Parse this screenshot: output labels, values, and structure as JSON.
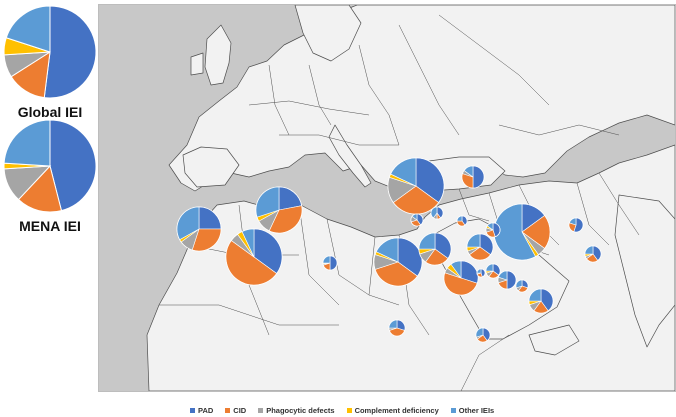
{
  "colors": {
    "PAD": "#4472c4",
    "CID": "#ed7d31",
    "Phagocytic defects": "#a5a5a5",
    "Complement deficiency": "#ffc000",
    "Other IEIs": "#5b9bd5",
    "land": "#f2f2f2",
    "sea": "#c8c8c8",
    "border": "#4d4d4d"
  },
  "legend": [
    {
      "label": "PAD",
      "color_key": "PAD"
    },
    {
      "label": "CID",
      "color_key": "CID"
    },
    {
      "label": "Phagocytic defects",
      "color_key": "Phagocytic defects"
    },
    {
      "label": "Complement deficiency",
      "color_key": "Complement deficiency"
    },
    {
      "label": "Other IEIs",
      "color_key": "Other IEIs"
    }
  ],
  "side_charts": [
    {
      "label": "Global IEI",
      "shares": [
        0.52,
        0.14,
        0.08,
        0.06,
        0.2
      ]
    },
    {
      "label": "MENA IEI",
      "shares": [
        0.46,
        0.16,
        0.12,
        0.02,
        0.24
      ]
    }
  ],
  "chart_data": {
    "type": "pie",
    "series_order": [
      "PAD",
      "CID",
      "Phagocytic defects",
      "Complement deficiency",
      "Other IEIs"
    ],
    "country_pies": [
      {
        "shares": [
          0.25,
          0.3,
          0.1,
          0.02,
          0.33
        ]
      },
      {
        "shares": [
          0.22,
          0.35,
          0.1,
          0.03,
          0.3
        ]
      },
      {
        "shares": [
          0.35,
          0.5,
          0.05,
          0.03,
          0.07
        ]
      },
      {
        "shares": [
          0.5,
          0.2,
          0.03,
          0.02,
          0.25
        ]
      },
      {
        "shares": [
          0.35,
          0.3,
          0.15,
          0.02,
          0.18
        ]
      },
      {
        "shares": [
          0.35,
          0.35,
          0.1,
          0.02,
          0.18
        ]
      },
      {
        "shares": [
          0.35,
          0.25,
          0.1,
          0.05,
          0.25
        ]
      },
      {
        "shares": [
          0.5,
          0.3,
          0.05,
          0.0,
          0.15
        ]
      },
      {
        "shares": [
          0.4,
          0.3,
          0.15,
          0.0,
          0.15
        ]
      },
      {
        "shares": [
          0.4,
          0.1,
          0.1,
          0.0,
          0.4
        ]
      },
      {
        "shares": [
          0.4,
          0.35,
          0.0,
          0.0,
          0.25
        ]
      },
      {
        "shares": [
          0.15,
          0.2,
          0.05,
          0.02,
          0.58
        ]
      },
      {
        "shares": [
          0.35,
          0.3,
          0.05,
          0.05,
          0.25
        ]
      },
      {
        "shares": [
          0.3,
          0.5,
          0.05,
          0.05,
          0.1
        ]
      },
      {
        "shares": [
          0.45,
          0.25,
          0.1,
          0.05,
          0.15
        ]
      },
      {
        "shares": [
          0.35,
          0.25,
          0.1,
          0.05,
          0.25
        ]
      },
      {
        "shares": [
          0.5,
          0.2,
          0.1,
          0.0,
          0.2
        ]
      },
      {
        "shares": [
          0.3,
          0.3,
          0.1,
          0.0,
          0.3
        ]
      },
      {
        "shares": [
          0.4,
          0.2,
          0.1,
          0.05,
          0.25
        ]
      },
      {
        "shares": [
          0.55,
          0.25,
          0.0,
          0.0,
          0.2
        ]
      },
      {
        "shares": [
          0.4,
          0.25,
          0.05,
          0.05,
          0.25
        ]
      },
      {
        "shares": [
          0.45,
          0.25,
          0.05,
          0.0,
          0.25
        ]
      },
      {
        "shares": [
          0.3,
          0.4,
          0.05,
          0.0,
          0.25
        ]
      },
      {
        "shares": [
          0.4,
          0.25,
          0.05,
          0.0,
          0.3
        ]
      }
    ]
  }
}
